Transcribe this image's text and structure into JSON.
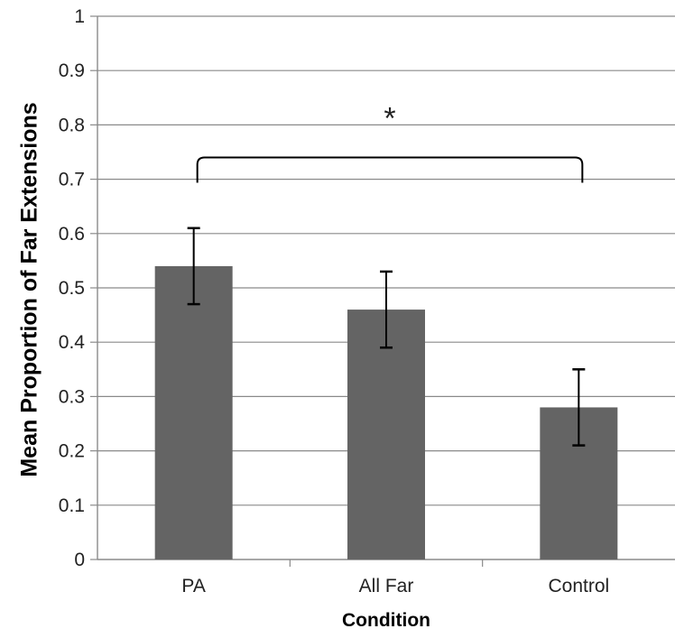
{
  "chart_data": {
    "type": "bar",
    "title": "",
    "xlabel": "Condition",
    "ylabel": "Mean Proportion of Far Extensions",
    "categories": [
      "PA",
      "All Far",
      "Control"
    ],
    "values": [
      0.54,
      0.46,
      0.28
    ],
    "error_low": [
      0.47,
      0.39,
      0.21
    ],
    "error_high": [
      0.61,
      0.53,
      0.35
    ],
    "ylim": [
      0,
      1
    ],
    "yticks": [
      "0",
      "0.1",
      "0.2",
      "0.3",
      "0.4",
      "0.5",
      "0.6",
      "0.7",
      "0.8",
      "0.9",
      "1"
    ],
    "grid": true,
    "bar_color": "#646464",
    "annotation": {
      "text": "*",
      "bracket_from": "PA",
      "bracket_to": "Control",
      "bracket_level": 0.74
    }
  }
}
